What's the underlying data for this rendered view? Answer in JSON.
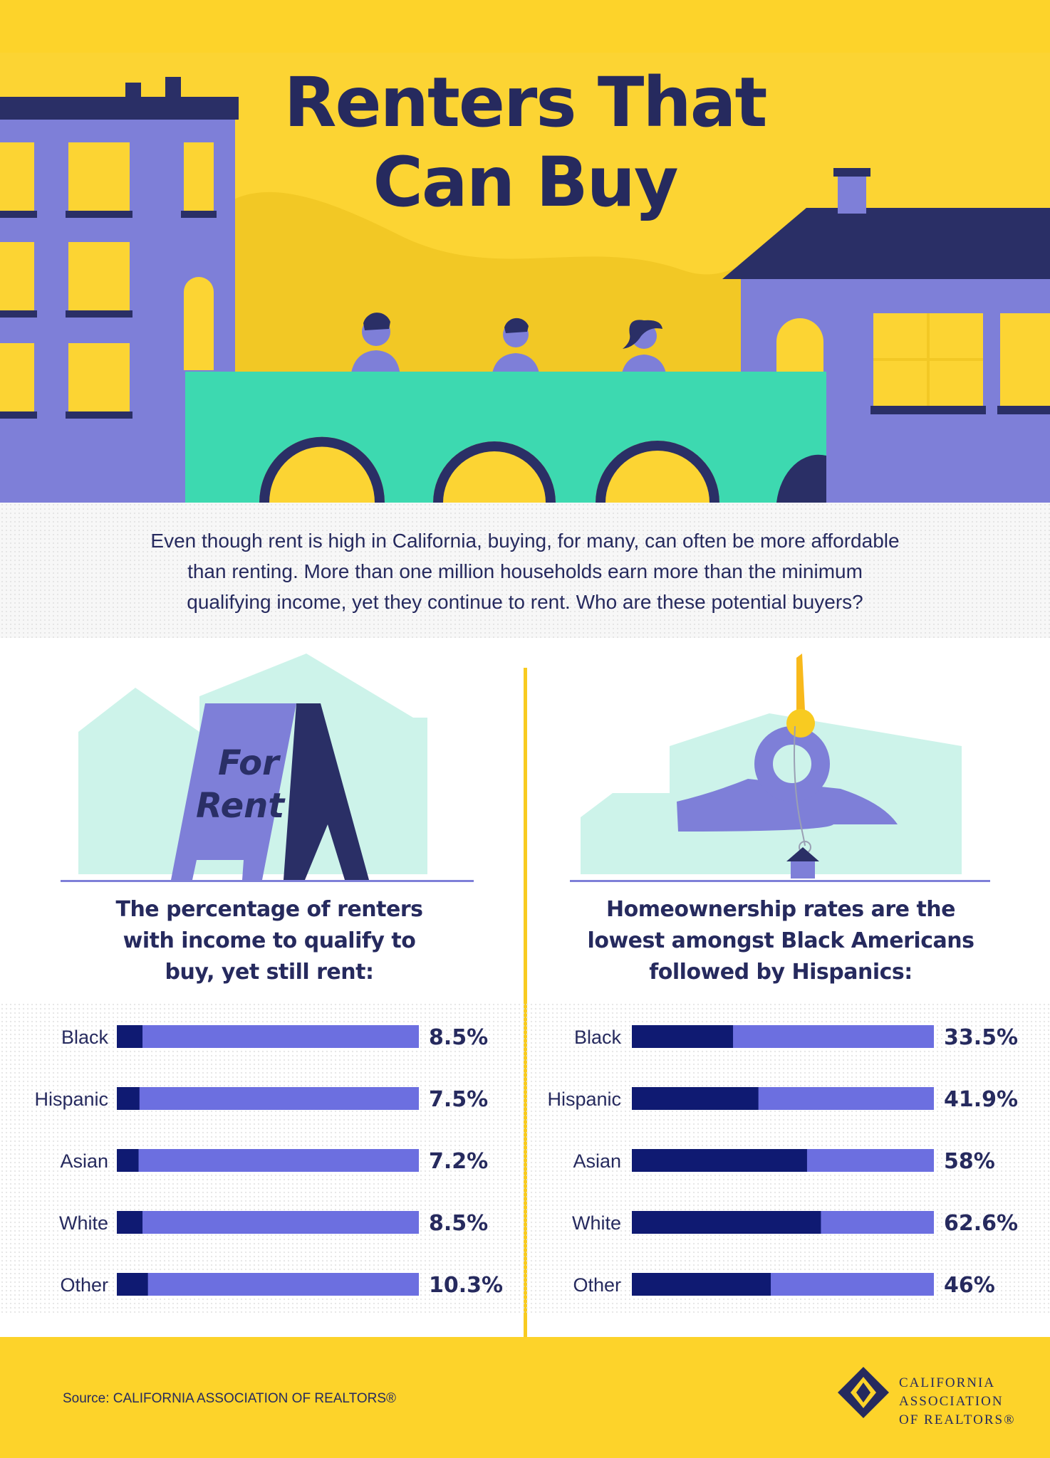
{
  "header": {
    "title_line1": "Renters That",
    "title_line2": "Can Buy"
  },
  "intro": {
    "line1": "Even though rent is high in California, buying, for many, can often be more affordable",
    "line2": "than renting. More than one million households earn more than the minimum",
    "line3": "qualifying income, yet they continue to rent.  Who are these potential buyers?"
  },
  "left_panel": {
    "sign_line1": "For",
    "sign_line2": "Rent",
    "heading_line1": "The percentage of renters",
    "heading_line2": "with income to qualify to",
    "heading_line3": "buy, yet still rent:"
  },
  "right_panel": {
    "heading_line1": "Homeownership rates are the",
    "heading_line2": "lowest amongst Black Americans",
    "heading_line3": "followed by Hispanics:"
  },
  "chart_data": [
    {
      "type": "bar",
      "orientation": "horizontal",
      "title": "The percentage of renters with income to qualify to buy, yet still rent:",
      "categories": [
        "Black",
        "Hispanic",
        "Asian",
        "White",
        "Other"
      ],
      "values": [
        8.5,
        7.5,
        7.2,
        8.5,
        10.3
      ],
      "labels": [
        "8.5%",
        "7.5%",
        "7.2%",
        "8.5%",
        "10.3%"
      ],
      "xlim": [
        0,
        100
      ],
      "unit": "%"
    },
    {
      "type": "bar",
      "orientation": "horizontal",
      "title": "Homeownership rates are the lowest amongst Black Americans followed by Hispanics:",
      "categories": [
        "Black",
        "Hispanic",
        "Asian",
        "White",
        "Other"
      ],
      "values": [
        33.5,
        41.9,
        58,
        62.6,
        46
      ],
      "labels": [
        "33.5%",
        "41.9%",
        "58%",
        "62.6%",
        "46%"
      ],
      "xlim": [
        0,
        100
      ],
      "unit": "%"
    }
  ],
  "colors": {
    "yellow": "#fcd433",
    "navy": "#262a5e",
    "bar_fill": "#0f1a72",
    "bar_track": "#6c6fe0",
    "purple": "#7e7fd8",
    "teal": "#3dd9b0"
  },
  "footer": {
    "source": "Source: CALIFORNIA ASSOCIATION OF REALTORS®",
    "logo_line1": "CALIFORNIA",
    "logo_line2": "ASSOCIATION",
    "logo_line3": "OF REALTORS®"
  }
}
